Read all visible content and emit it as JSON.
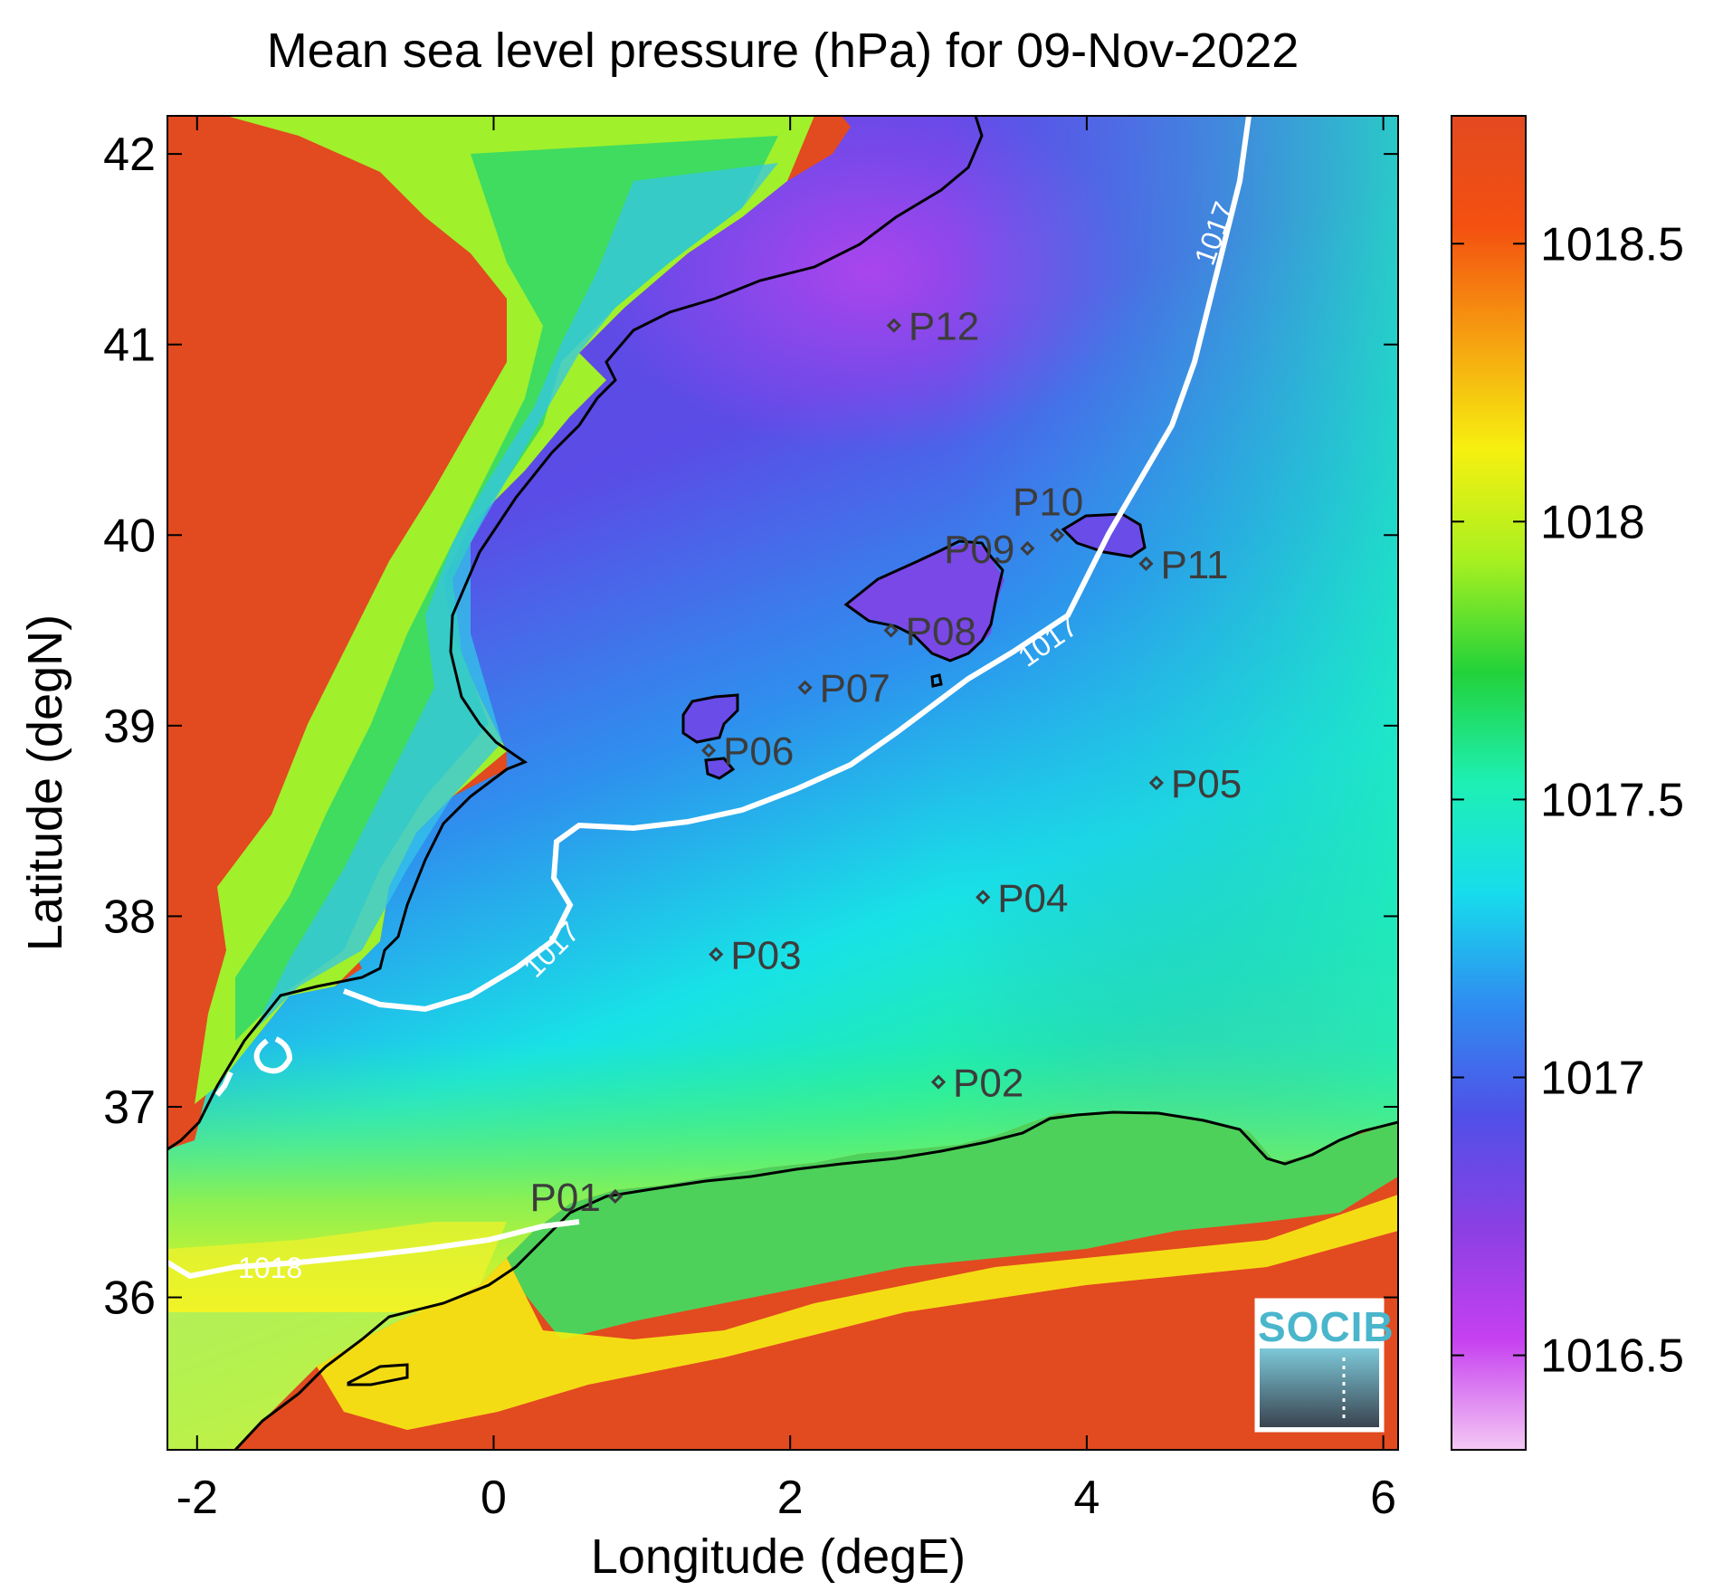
{
  "title": "Mean sea level pressure (hPa) for 09-Nov-2022",
  "xlabel": "Longitude (degE)",
  "ylabel": "Latitude (degN)",
  "x_ticks": [
    "-2",
    "0",
    "2",
    "4",
    "6"
  ],
  "y_ticks": [
    "42",
    "41",
    "40",
    "39",
    "38",
    "37",
    "36"
  ],
  "colorbar": {
    "ticks": [
      "1018.5",
      "1018",
      "1017.5",
      "1017",
      "1016.5"
    ],
    "range": [
      1016.33,
      1018.73
    ],
    "colors": [
      "#f4c8f4",
      "#c640f0",
      "#8a40e4",
      "#5050e8",
      "#2f8cf0",
      "#17dcec",
      "#1ef0b4",
      "#22d23a",
      "#a8f020",
      "#f6f010",
      "#f6a010",
      "#f45010",
      "#e24a20"
    ]
  },
  "logo": {
    "text": "SOCIB"
  },
  "chart_data": {
    "type": "heatmap",
    "title": "Mean sea level pressure (hPa) for 09-Nov-2022",
    "xlabel": "Longitude (degE)",
    "ylabel": "Latitude (degN)",
    "xlim": [
      -2.2,
      6.1
    ],
    "ylim": [
      35.2,
      42.2
    ],
    "unit": "hPa",
    "colorbar_range": [
      1016.33,
      1018.73
    ],
    "contours": [
      {
        "label": "1017",
        "value": 1017
      },
      {
        "label": "1018",
        "value": 1018
      }
    ],
    "stations": [
      {
        "name": "P01",
        "lon": 0.82,
        "lat": 36.53
      },
      {
        "name": "P02",
        "lon": 3.0,
        "lat": 37.13
      },
      {
        "name": "P03",
        "lon": 1.5,
        "lat": 37.8
      },
      {
        "name": "P04",
        "lon": 3.3,
        "lat": 38.1
      },
      {
        "name": "P05",
        "lon": 4.47,
        "lat": 38.7
      },
      {
        "name": "P06",
        "lon": 1.45,
        "lat": 38.87
      },
      {
        "name": "P07",
        "lon": 2.1,
        "lat": 39.2
      },
      {
        "name": "P08",
        "lon": 2.68,
        "lat": 39.5
      },
      {
        "name": "P09",
        "lon": 3.6,
        "lat": 39.93
      },
      {
        "name": "P10",
        "lon": 3.8,
        "lat": 40.0
      },
      {
        "name": "P11",
        "lon": 4.4,
        "lat": 39.85
      },
      {
        "name": "P12",
        "lon": 2.7,
        "lat": 41.1
      }
    ]
  }
}
